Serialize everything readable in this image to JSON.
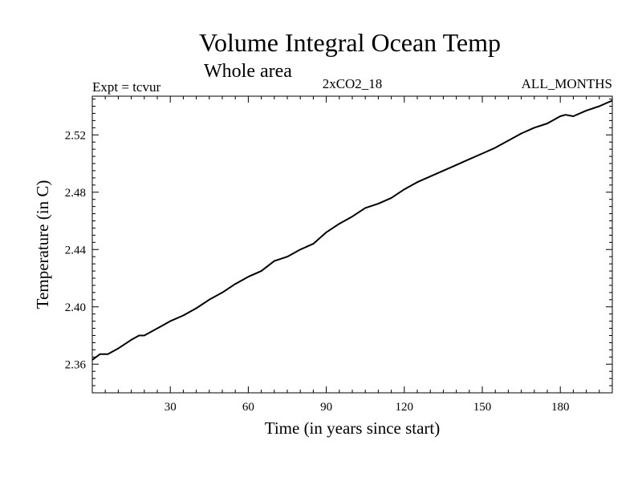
{
  "chart_data": {
    "type": "line",
    "title": "Volume Integral Ocean Temp",
    "subtitle": "Whole area",
    "annotations": {
      "left": "Expt = tcvur",
      "center": "2xCO2_18",
      "right": "ALL_MONTHS"
    },
    "xlabel": "Time (in years since start)",
    "ylabel": "Temperature (in C)",
    "xlim": [
      0,
      200
    ],
    "ylim": [
      2.34,
      2.547
    ],
    "xticks": [
      30,
      60,
      90,
      120,
      150,
      180
    ],
    "xtick_labels": [
      "30",
      "60",
      "90",
      "120",
      "150",
      "180"
    ],
    "yticks": [
      2.36,
      2.4,
      2.44,
      2.48,
      2.52
    ],
    "ytick_labels": [
      "2.36",
      "2.40",
      "2.44",
      "2.48",
      "2.52"
    ],
    "grid": false,
    "series": [
      {
        "x": [
          0,
          3,
          6,
          10,
          15,
          18,
          20,
          25,
          30,
          35,
          40,
          45,
          50,
          55,
          60,
          65,
          70,
          75,
          80,
          85,
          90,
          95,
          100,
          105,
          110,
          115,
          120,
          125,
          130,
          135,
          140,
          145,
          150,
          155,
          160,
          165,
          170,
          175,
          180,
          182,
          185,
          190,
          195,
          200
        ],
        "values": [
          2.363,
          2.367,
          2.367,
          2.371,
          2.377,
          2.38,
          2.38,
          2.385,
          2.39,
          2.394,
          2.399,
          2.405,
          2.41,
          2.416,
          2.421,
          2.425,
          2.432,
          2.435,
          2.44,
          2.444,
          2.452,
          2.458,
          2.463,
          2.469,
          2.472,
          2.476,
          2.482,
          2.487,
          2.491,
          2.495,
          2.499,
          2.503,
          2.507,
          2.511,
          2.516,
          2.521,
          2.525,
          2.528,
          2.533,
          2.534,
          2.533,
          2.537,
          2.54,
          2.544
        ]
      }
    ]
  }
}
